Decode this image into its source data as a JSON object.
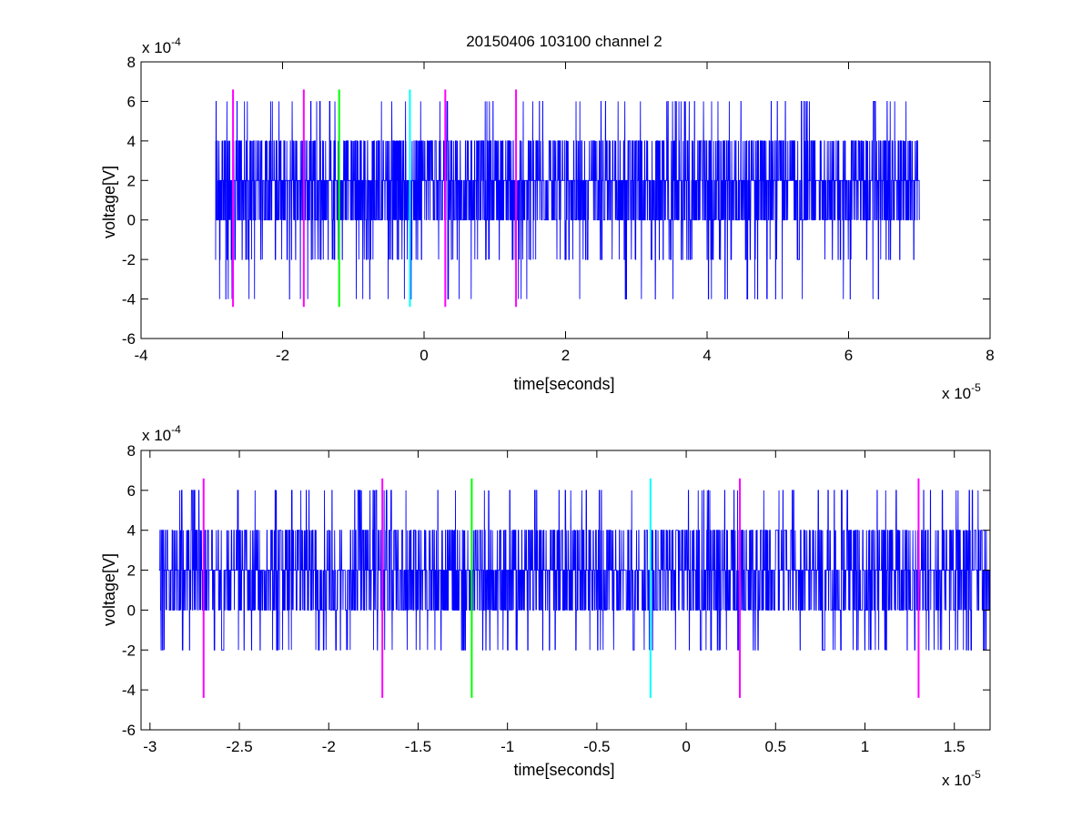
{
  "chart_data": [
    {
      "type": "line",
      "title": "20150406 103100 channel 2",
      "xlabel": "time[seconds]",
      "ylabel": "voltage[V]",
      "x_multiplier": "x 10",
      "x_exponent": "-5",
      "y_multiplier": "x 10",
      "y_exponent": "-4",
      "xlim": [
        -4e-05,
        8e-05
      ],
      "ylim": [
        -0.0006,
        0.0008
      ],
      "xticks": [
        -4e-05,
        -2e-05,
        0,
        2e-05,
        4e-05,
        6e-05,
        8e-05
      ],
      "xtick_labels": [
        "-4",
        "-2",
        "0",
        "2",
        "4",
        "6",
        "8"
      ],
      "yticks": [
        -0.0006,
        -0.0004,
        -0.0002,
        0,
        0.0002,
        0.0004,
        0.0006,
        0.0008
      ],
      "ytick_labels": [
        "-6",
        "-4",
        "-2",
        "0",
        "2",
        "4",
        "6",
        "8"
      ],
      "series": [
        {
          "color": "#0000ff",
          "kind": "quantized noise trace",
          "x_start": -2.95e-05,
          "x_end": 7e-05,
          "sample_step": 2e-08,
          "levels": [
            -0.0004,
            -0.0002,
            0,
            0.0002,
            0.0004,
            0.0006
          ],
          "baseline": 0.0002
        }
      ],
      "markers": [
        {
          "x": -2.7e-05,
          "color": "#ff00ff",
          "y_range": [
            -0.00044,
            0.00066
          ]
        },
        {
          "x": -1.7e-05,
          "color": "#ff00ff",
          "y_range": [
            -0.00044,
            0.00066
          ]
        },
        {
          "x": -1.2e-05,
          "color": "#00ff00",
          "y_range": [
            -0.00044,
            0.00066
          ]
        },
        {
          "x": -2e-06,
          "color": "#00ffff",
          "y_range": [
            -0.00044,
            0.00066
          ]
        },
        {
          "x": 3e-06,
          "color": "#ff00ff",
          "y_range": [
            -0.00044,
            0.00066
          ]
        },
        {
          "x": 1.3e-05,
          "color": "#ff00ff",
          "y_range": [
            -0.00044,
            0.00066
          ]
        }
      ]
    },
    {
      "type": "line",
      "title": "",
      "xlabel": "time[seconds]",
      "ylabel": "voltage[V]",
      "x_multiplier": "x 10",
      "x_exponent": "-5",
      "y_multiplier": "x 10",
      "y_exponent": "-4",
      "xlim": [
        -3.05e-05,
        1.7e-05
      ],
      "ylim": [
        -0.0006,
        0.0008
      ],
      "xticks": [
        -3e-05,
        -2.5e-05,
        -2e-05,
        -1.5e-05,
        -1e-05,
        -5e-06,
        0,
        5e-06,
        1e-05,
        1.5e-05
      ],
      "xtick_labels": [
        "-3",
        "-2.5",
        "-2",
        "-1.5",
        "-1",
        "-0.5",
        "0",
        "0.5",
        "1",
        "1.5"
      ],
      "yticks": [
        -0.0006,
        -0.0004,
        -0.0002,
        0,
        0.0002,
        0.0004,
        0.0006,
        0.0008
      ],
      "ytick_labels": [
        "-6",
        "-4",
        "-2",
        "0",
        "2",
        "4",
        "6",
        "8"
      ],
      "series": [
        {
          "color": "#0000ff",
          "kind": "quantized noise trace",
          "x_start": -2.95e-05,
          "x_end": 1.7e-05,
          "sample_step": 1e-08,
          "levels": [
            -0.0002,
            0,
            0.0002,
            0.0004,
            0.0006
          ],
          "baseline": 0.0002
        }
      ],
      "markers": [
        {
          "x": -2.7e-05,
          "color": "#ff00ff",
          "y_range": [
            -0.00044,
            0.00066
          ]
        },
        {
          "x": -1.7e-05,
          "color": "#ff00ff",
          "y_range": [
            -0.00044,
            0.00066
          ]
        },
        {
          "x": -1.2e-05,
          "color": "#00ff00",
          "y_range": [
            -0.00044,
            0.00066
          ]
        },
        {
          "x": -2e-06,
          "color": "#00ffff",
          "y_range": [
            -0.00044,
            0.00066
          ]
        },
        {
          "x": 3e-06,
          "color": "#ff00ff",
          "y_range": [
            -0.00044,
            0.00066
          ]
        },
        {
          "x": 1.3e-05,
          "color": "#ff00ff",
          "y_range": [
            -0.00044,
            0.00066
          ]
        }
      ]
    }
  ]
}
